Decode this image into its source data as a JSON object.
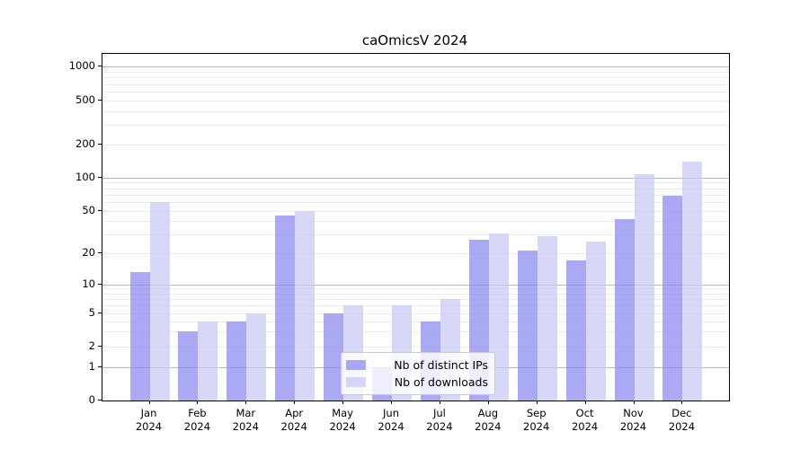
{
  "title": "caOmicsV 2024",
  "chart_data": {
    "type": "bar",
    "title": "caOmicsV 2024",
    "categories": [
      "Jan 2024",
      "Feb 2024",
      "Mar 2024",
      "Apr 2024",
      "May 2024",
      "Jun 2024",
      "Jul 2024",
      "Aug 2024",
      "Sep 2024",
      "Oct 2024",
      "Nov 2024",
      "Dec 2024"
    ],
    "series": [
      {
        "name": "Nb of distinct IPs",
        "color": "#a9a9f4",
        "fill": "rgba(140,140,240,0.75)",
        "values": [
          13,
          3,
          4,
          45,
          5,
          1,
          4,
          27,
          21,
          17,
          42,
          69
        ]
      },
      {
        "name": "Nb of downloads",
        "color": "#d7d7f8",
        "fill": "rgba(200,200,245,0.72)",
        "values": [
          60,
          4,
          5,
          50,
          6,
          6,
          7,
          31,
          29,
          26,
          107,
          140
        ]
      }
    ],
    "xlabel": "",
    "ylabel": "",
    "yscale": "symlog",
    "yticks": [
      0,
      1,
      2,
      5,
      10,
      20,
      50,
      100,
      200,
      500,
      1000
    ],
    "ylim": [
      0,
      1300
    ],
    "grid": true,
    "legend_position": "lower center inside"
  },
  "colors": {
    "background": "#ffffff",
    "axis": "#000000",
    "major_grid": "#b9b9b9",
    "minor_grid": "#ececec",
    "legend_border": "#cccccc"
  }
}
